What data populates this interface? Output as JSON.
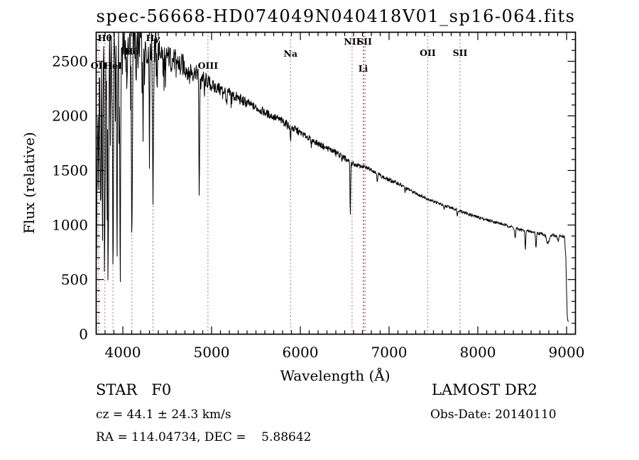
{
  "title": "spec-56668-HD074049N040418V01_sp16-064.fits",
  "annotations": {
    "class_line": "STAR   F0",
    "cz_line": "cz = 44.1 ± 24.3 km/s",
    "radec_line": "RA = 114.04734, DEC =    5.88642",
    "survey": "LAMOST DR2",
    "obs_date": "Obs-Date: 20140110"
  },
  "chart_data": {
    "type": "line",
    "title": "spec-56668-HD074049N040418V01_sp16-064.fits",
    "xlabel": "Wavelength (Å)",
    "ylabel": "Flux (relative)",
    "xlim": [
      3700,
      9100
    ],
    "ylim": [
      0,
      2766
    ],
    "x_ticks": [
      4000,
      5000,
      6000,
      7000,
      8000,
      9000
    ],
    "y_ticks": [
      0,
      500,
      1000,
      1500,
      2000,
      2500
    ],
    "x_minor_step": 100,
    "y_minor_step": 100,
    "grid": false,
    "legend": "none",
    "line_color": "#000000",
    "marker_line_color": "#9b5050",
    "marker_lines": [
      3727,
      3798,
      3889,
      4102,
      4340,
      4959,
      5890,
      6583,
      6708,
      6716,
      6731,
      7435,
      7800
    ],
    "line_labels": [
      {
        "text": "OII",
        "wavelength": 3727,
        "y": 97
      },
      {
        "text": "Hθ",
        "wavelength": 3798,
        "y": 58
      },
      {
        "text": "HeI",
        "wavelength": 3889,
        "y": 97
      },
      {
        "text": "Hδ",
        "wavelength": 4102,
        "y": 77
      },
      {
        "text": "Hγ",
        "wavelength": 4340,
        "y": 58
      },
      {
        "text": "OIII",
        "wavelength": 4959,
        "y": 97
      },
      {
        "text": "Na",
        "wavelength": 5890,
        "y": 80
      },
      {
        "text": "NII",
        "wavelength": 6583,
        "y": 63
      },
      {
        "text": "SII",
        "wavelength": 6724,
        "y": 63
      },
      {
        "text": "Li",
        "wavelength": 6708,
        "y": 101
      },
      {
        "text": "OII",
        "wavelength": 7435,
        "y": 79
      },
      {
        "text": "SII",
        "wavelength": 7800,
        "y": 79
      }
    ],
    "sample_start": 3704,
    "sample_end": 9022,
    "sample_step": 4,
    "envelope": [
      [
        3704,
        1250
      ],
      [
        3708,
        2100
      ],
      [
        3715,
        2350
      ],
      [
        3760,
        2450
      ],
      [
        3820,
        2520
      ],
      [
        3900,
        2600
      ],
      [
        3960,
        2620
      ],
      [
        4020,
        2680
      ],
      [
        4120,
        2700
      ],
      [
        4260,
        2660
      ],
      [
        4340,
        2630
      ],
      [
        4420,
        2590
      ],
      [
        4520,
        2540
      ],
      [
        4620,
        2490
      ],
      [
        4720,
        2440
      ],
      [
        4820,
        2400
      ],
      [
        4900,
        2350
      ],
      [
        5000,
        2280
      ],
      [
        5100,
        2245
      ],
      [
        5200,
        2205
      ],
      [
        5300,
        2160
      ],
      [
        5400,
        2120
      ],
      [
        5500,
        2075
      ],
      [
        5600,
        2030
      ],
      [
        5700,
        1990
      ],
      [
        5800,
        1950
      ],
      [
        5900,
        1895
      ],
      [
        6000,
        1845
      ],
      [
        6100,
        1795
      ],
      [
        6200,
        1745
      ],
      [
        6300,
        1705
      ],
      [
        6400,
        1665
      ],
      [
        6500,
        1610
      ],
      [
        6560,
        1570
      ],
      [
        6620,
        1550
      ],
      [
        6700,
        1535
      ],
      [
        6800,
        1510
      ],
      [
        6870,
        1470
      ],
      [
        6950,
        1430
      ],
      [
        7000,
        1412
      ],
      [
        7100,
        1382
      ],
      [
        7200,
        1333
      ],
      [
        7300,
        1292
      ],
      [
        7400,
        1252
      ],
      [
        7500,
        1218
      ],
      [
        7600,
        1185
      ],
      [
        7700,
        1158
      ],
      [
        7800,
        1132
      ],
      [
        7900,
        1098
      ],
      [
        8000,
        1072
      ],
      [
        8100,
        1048
      ],
      [
        8200,
        1026
      ],
      [
        8300,
        1002
      ],
      [
        8400,
        978
      ],
      [
        8500,
        952
      ],
      [
        8600,
        938
      ],
      [
        8700,
        922
      ],
      [
        8800,
        908
      ],
      [
        8900,
        902
      ],
      [
        8975,
        895
      ],
      [
        8992,
        700
      ],
      [
        9000,
        380
      ],
      [
        9008,
        160
      ],
      [
        9016,
        110
      ],
      [
        9022,
        105
      ]
    ],
    "noise_segments": [
      [
        3704,
        4000,
        280,
        1100,
        0.3
      ],
      [
        4000,
        4380,
        200,
        500,
        0.18
      ],
      [
        4380,
        4800,
        110,
        250,
        0.1
      ],
      [
        4800,
        5000,
        70,
        120,
        0.06
      ],
      [
        5000,
        5400,
        55,
        80,
        0.04
      ],
      [
        5400,
        6000,
        38,
        60,
        0.03
      ],
      [
        6000,
        6600,
        28,
        40,
        0.02
      ],
      [
        6600,
        7200,
        18,
        0,
        0
      ],
      [
        7200,
        8000,
        14,
        0,
        0
      ],
      [
        8000,
        8400,
        13,
        0,
        0
      ],
      [
        8400,
        9000,
        14,
        0,
        0
      ],
      [
        9000,
        9022,
        10,
        0,
        0
      ]
    ],
    "absorption_dips": [
      [
        3712,
        900,
        5
      ],
      [
        3727,
        1250,
        5
      ],
      [
        3750,
        1400,
        6
      ],
      [
        3771,
        1500,
        6
      ],
      [
        3798,
        1650,
        7
      ],
      [
        3820,
        800,
        5
      ],
      [
        3835,
        1700,
        7
      ],
      [
        3860,
        700,
        5
      ],
      [
        3889,
        1780,
        8
      ],
      [
        3934,
        1500,
        7
      ],
      [
        3970,
        1600,
        8
      ],
      [
        4045,
        500,
        6
      ],
      [
        4102,
        1780,
        8
      ],
      [
        4150,
        450,
        5
      ],
      [
        4227,
        400,
        5
      ],
      [
        4300,
        550,
        7
      ],
      [
        4340,
        1270,
        8
      ],
      [
        4385,
        380,
        5
      ],
      [
        4455,
        250,
        5
      ],
      [
        4481,
        280,
        5
      ],
      [
        4861,
        1110,
        6
      ],
      [
        4920,
        150,
        5
      ],
      [
        5170,
        130,
        8
      ],
      [
        5890,
        115,
        7
      ],
      [
        6122,
        60,
        6
      ],
      [
        6563,
        505,
        5
      ],
      [
        6867,
        65,
        6
      ],
      [
        7180,
        40,
        6
      ],
      [
        7620,
        45,
        7
      ],
      [
        7770,
        55,
        6
      ],
      [
        8420,
        95,
        8
      ],
      [
        8535,
        165,
        6
      ],
      [
        8655,
        150,
        6
      ],
      [
        8790,
        75,
        22
      ],
      [
        8905,
        50,
        10
      ]
    ]
  }
}
